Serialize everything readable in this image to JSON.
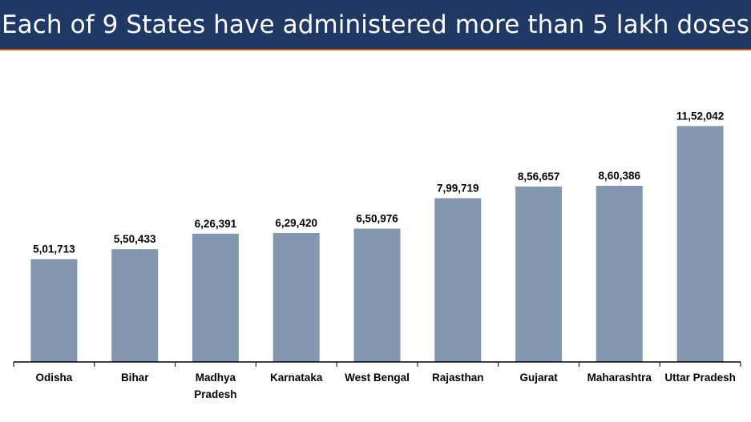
{
  "header": {
    "title": "Each of 9 States have administered more than 5 lakh doses"
  },
  "colors": {
    "header_bg": "#1f3864",
    "header_rule": "#c55a11",
    "bar": "#8497b0",
    "axis": "#000000"
  },
  "chart_data": {
    "type": "bar",
    "title": "",
    "xlabel": "",
    "ylabel": "",
    "categories": [
      "Odisha",
      "Bihar",
      "Madhya Pradesh",
      "Karnataka",
      "West Bengal",
      "Rajasthan",
      "Gujarat",
      "Maharashtra",
      "Uttar Pradesh"
    ],
    "category_lines": [
      [
        "Odisha"
      ],
      [
        "Bihar"
      ],
      [
        "Madhya",
        "Pradesh"
      ],
      [
        "Karnataka"
      ],
      [
        "West Bengal"
      ],
      [
        "Rajasthan"
      ],
      [
        "Gujarat"
      ],
      [
        "Maharashtra"
      ],
      [
        "Uttar Pradesh"
      ]
    ],
    "values": [
      501713,
      550433,
      626391,
      629420,
      650976,
      799719,
      856657,
      860386,
      1152042
    ],
    "value_labels": [
      "5,01,713",
      "5,50,433",
      "6,26,391",
      "6,29,420",
      "6,50,976",
      "7,99,719",
      "8,56,657",
      "8,60,386",
      "11,52,042"
    ],
    "ylim": [
      0,
      1400000
    ],
    "grid": false,
    "legend": "none"
  }
}
